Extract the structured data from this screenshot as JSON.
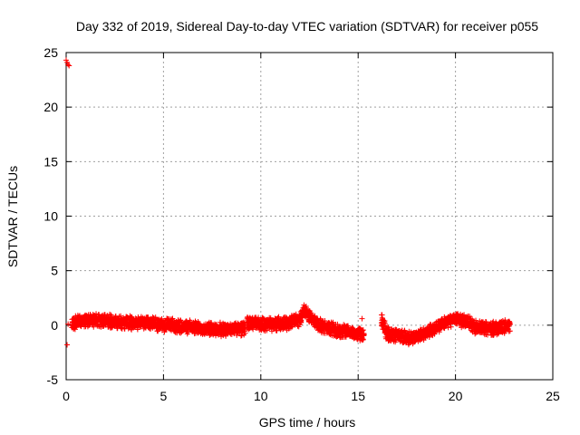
{
  "chart_data": {
    "type": "scatter",
    "title": "Day 332 of 2019, Sidereal Day-to-day VTEC variation (SDTVAR) for receiver p055",
    "xlabel": "GPS time / hours",
    "ylabel": "SDTVAR / TECUs",
    "xlim": [
      0,
      25
    ],
    "ylim": [
      -5,
      25
    ],
    "xticks": [
      0,
      5,
      10,
      15,
      20,
      25
    ],
    "yticks": [
      -5,
      0,
      5,
      10,
      15,
      20,
      25
    ],
    "grid": true,
    "marker": "+",
    "color": "#ff0000",
    "series": [
      {
        "name": "SDTVAR",
        "description": "dense point cloud approximated by centerline with vertical spread",
        "segments": [
          {
            "x_start": 0.0,
            "x_end": 0.2,
            "points": [
              [
                0.0,
                24.3
              ],
              [
                0.05,
                24.1
              ],
              [
                0.1,
                23.9
              ],
              [
                0.15,
                23.8
              ],
              [
                0.05,
                -1.8
              ],
              [
                0.1,
                0.1
              ]
            ]
          },
          {
            "x_start": 0.3,
            "x_end": 9.2,
            "centerline": [
              [
                0.3,
                0.1
              ],
              [
                1.0,
                0.5
              ],
              [
                2.0,
                0.4
              ],
              [
                3.0,
                0.2
              ],
              [
                4.0,
                0.3
              ],
              [
                5.0,
                0.0
              ],
              [
                6.0,
                -0.1
              ],
              [
                7.0,
                -0.3
              ],
              [
                8.0,
                -0.4
              ],
              [
                9.2,
                -0.3
              ]
            ],
            "spread": 0.7
          },
          {
            "x_start": 9.3,
            "x_end": 15.3,
            "centerline": [
              [
                9.3,
                0.2
              ],
              [
                10.0,
                0.1
              ],
              [
                11.0,
                0.1
              ],
              [
                12.0,
                0.5
              ],
              [
                12.2,
                1.3
              ],
              [
                13.0,
                0.0
              ],
              [
                14.0,
                -0.5
              ],
              [
                15.0,
                -0.8
              ],
              [
                15.3,
                -0.9
              ]
            ],
            "spread": 0.7
          },
          {
            "x_start": 16.2,
            "x_end": 22.8,
            "centerline": [
              [
                16.2,
                0.5
              ],
              [
                16.5,
                -0.8
              ],
              [
                17.0,
                -0.9
              ],
              [
                17.6,
                -1.2
              ],
              [
                18.5,
                -0.7
              ],
              [
                19.2,
                0.0
              ],
              [
                20.0,
                0.6
              ],
              [
                20.5,
                0.4
              ],
              [
                21.0,
                -0.2
              ],
              [
                22.0,
                -0.3
              ],
              [
                22.8,
                0.0
              ]
            ],
            "spread": 0.7
          },
          {
            "x_start": 15.2,
            "x_end": 15.2,
            "points": [
              [
                15.2,
                0.6
              ]
            ]
          }
        ]
      }
    ]
  }
}
